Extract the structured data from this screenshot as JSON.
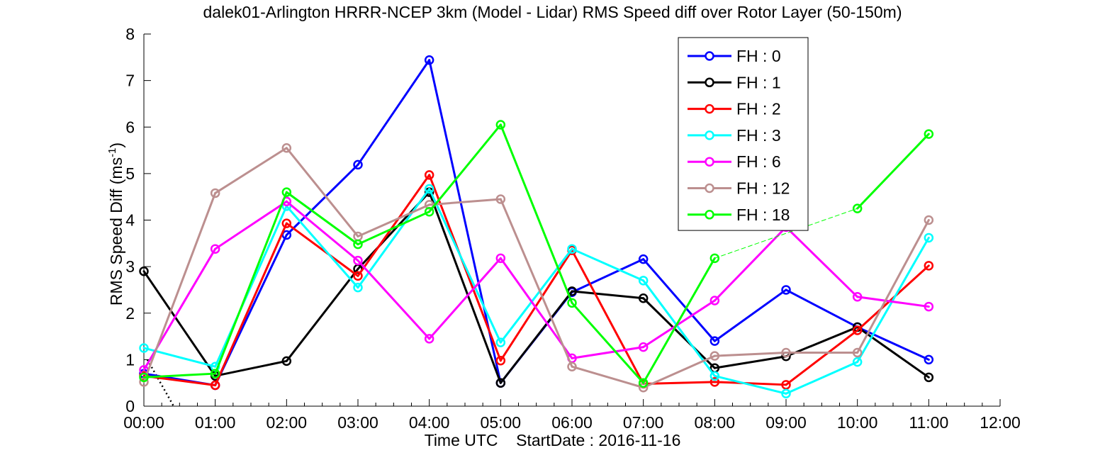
{
  "chart_data": {
    "type": "line",
    "title": "dalek01-Arlington HRRR-NCEP 3km (Model - Lidar) RMS Speed diff over Rotor Layer (50-150m)",
    "xlabel": "Time UTC    StartDate : 2016-11-16",
    "ylabel": {
      "text": "RMS Speed Diff (ms",
      "sup": "-1",
      "close": ")"
    },
    "x_ticks": [
      "00:00",
      "01:00",
      "02:00",
      "03:00",
      "04:00",
      "05:00",
      "06:00",
      "07:00",
      "08:00",
      "09:00",
      "10:00",
      "11:00",
      "12:00"
    ],
    "y_ticks": [
      "0",
      "1",
      "2",
      "3",
      "4",
      "5",
      "6",
      "7",
      "8"
    ],
    "xlim": [
      0,
      12
    ],
    "ylim": [
      0,
      8
    ],
    "grid": false,
    "legend_position": "top-right",
    "series": [
      {
        "name": "FH : 0",
        "color": "#0000ff",
        "x": [
          0,
          1,
          2,
          3,
          4,
          5,
          6,
          7,
          8,
          9,
          10,
          11
        ],
        "values": [
          0.7,
          0.45,
          3.68,
          5.19,
          7.44,
          0.5,
          2.45,
          3.16,
          1.4,
          2.5,
          1.7,
          1.0
        ]
      },
      {
        "name": "FH : 1",
        "color": "#000000",
        "x": [
          0,
          1,
          2,
          3,
          4,
          5,
          6,
          7,
          8,
          9,
          10,
          11
        ],
        "values": [
          2.9,
          0.65,
          0.97,
          2.95,
          4.6,
          0.5,
          2.47,
          2.32,
          0.82,
          1.07,
          1.7,
          0.62
        ]
      },
      {
        "name": "FH : 2",
        "color": "#ff0000",
        "x": [
          0,
          1,
          2,
          3,
          4,
          5,
          6,
          7,
          8,
          9,
          10,
          11
        ],
        "values": [
          0.65,
          0.45,
          3.93,
          2.8,
          4.97,
          0.98,
          3.35,
          0.48,
          0.52,
          0.46,
          1.63,
          3.02
        ]
      },
      {
        "name": "FH : 3",
        "color": "#00ffff",
        "x": [
          0,
          1,
          2,
          3,
          4,
          5,
          6,
          7,
          8,
          9,
          10,
          11
        ],
        "values": [
          1.25,
          0.85,
          4.3,
          2.55,
          4.67,
          1.37,
          3.38,
          2.7,
          0.65,
          0.27,
          0.95,
          3.62
        ]
      },
      {
        "name": "FH : 6",
        "color": "#ff00ff",
        "x": [
          0,
          1,
          2,
          3,
          4,
          5,
          6,
          7,
          8,
          9,
          10,
          11
        ],
        "values": [
          0.78,
          3.38,
          4.4,
          3.13,
          1.45,
          3.18,
          1.03,
          1.27,
          2.27,
          3.85,
          2.35,
          2.14
        ]
      },
      {
        "name": "FH : 12",
        "color": "#bc8f8f",
        "x": [
          0,
          1,
          2,
          3,
          4,
          5,
          6,
          7,
          8,
          9,
          10,
          11
        ],
        "values": [
          0.52,
          4.58,
          5.55,
          3.65,
          4.33,
          4.45,
          0.85,
          0.4,
          1.08,
          1.15,
          1.15,
          4.0
        ]
      },
      {
        "name": "FH : 18",
        "color": "#00ff00",
        "x": [
          0,
          1,
          2,
          3,
          4,
          5,
          6,
          7,
          8,
          10,
          11
        ],
        "values": [
          0.62,
          0.7,
          4.6,
          3.48,
          4.18,
          6.05,
          2.22,
          0.5,
          3.18,
          4.25,
          5.85
        ]
      }
    ]
  }
}
